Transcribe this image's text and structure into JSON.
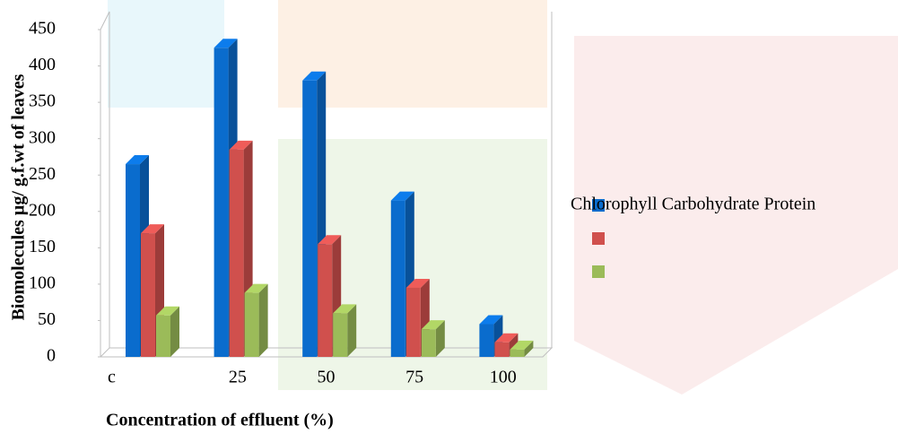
{
  "chart_data": {
    "type": "bar3d",
    "y_label": "Biomolecules µg/ g.f.wt of leaves",
    "x_label": "Concentration of effluent (%)",
    "categories": [
      "c",
      "25",
      "50",
      "75",
      "100"
    ],
    "series": [
      {
        "name": "Chlorophyll",
        "color": "#0a6ccd",
        "values": [
          265,
          425,
          380,
          215,
          45
        ]
      },
      {
        "name": "Carbohydrate",
        "color": "#d0504d",
        "values": [
          170,
          285,
          155,
          95,
          20
        ]
      },
      {
        "name": "Protein",
        "color": "#9bbb59",
        "values": [
          57,
          88,
          60,
          38,
          10
        ]
      }
    ],
    "ylim": [
      0,
      450
    ],
    "yticks": [
      0,
      50,
      100,
      150,
      200,
      250,
      300,
      350,
      400,
      450
    ]
  }
}
